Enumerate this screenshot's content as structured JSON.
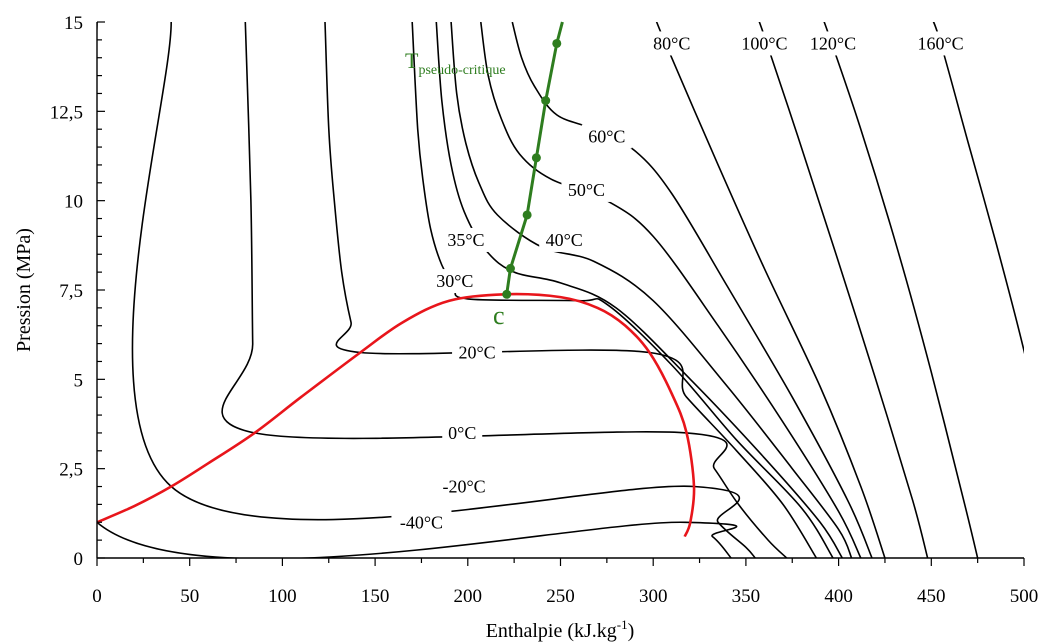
{
  "chart_data": {
    "type": "line",
    "xlabel": "Enthalpie (kJ.kg",
    "xlabel_sup": "-1",
    "xlabel_end": ")",
    "ylabel": "Pression (MPa)",
    "xlim": [
      0,
      500
    ],
    "ylim": [
      0,
      15
    ],
    "x_ticks": [
      "0",
      "50",
      "100",
      "150",
      "200",
      "250",
      "300",
      "350",
      "400",
      "450",
      "500"
    ],
    "y_ticks": [
      "0",
      "2,5",
      "5",
      "7,5",
      "10",
      "12,5",
      "15"
    ],
    "grid": false,
    "critical_point_label": "c",
    "pseudo_critical_label": {
      "main": "T",
      "sub": "pseudo-critique"
    },
    "colors": {
      "isotherm": "#000000",
      "saturation": "#e8151b",
      "pseudo_critical": "#2e7d1f"
    },
    "saturation_dome": [
      [
        0,
        1.0
      ],
      [
        20,
        1.45
      ],
      [
        40,
        2.0
      ],
      [
        60,
        2.65
      ],
      [
        85,
        3.5
      ],
      [
        110,
        4.5
      ],
      [
        142,
        5.75
      ],
      [
        165,
        6.6
      ],
      [
        190,
        7.2
      ],
      [
        220,
        7.38
      ],
      [
        250,
        7.3
      ],
      [
        270,
        7.0
      ],
      [
        285,
        6.5
      ],
      [
        298,
        5.75
      ],
      [
        310,
        4.6
      ],
      [
        318,
        3.5
      ],
      [
        322,
        2.0
      ],
      [
        320,
        1.0
      ],
      [
        317,
        0.6
      ]
    ],
    "pseudo_critical_points": [
      [
        221,
        7.38
      ],
      [
        223,
        8.1
      ],
      [
        232,
        9.6
      ],
      [
        237,
        11.2
      ],
      [
        242,
        12.8
      ],
      [
        248,
        14.4
      ]
    ],
    "pseudo_critical_line": [
      [
        221,
        7.38
      ],
      [
        223,
        8.1
      ],
      [
        232,
        9.6
      ],
      [
        237,
        11.2
      ],
      [
        242,
        12.8
      ],
      [
        248,
        14.4
      ],
      [
        251,
        15.0
      ]
    ],
    "series": [
      {
        "label": "-40°C",
        "label_at": [
          175,
          1.0
        ],
        "points": [
          [
            0,
            15
          ],
          [
            0,
            1.0
          ],
          [
            317,
            1.0
          ],
          [
            332,
            0.6
          ],
          [
            342,
            0
          ]
        ]
      },
      {
        "label": "-20°C",
        "label_at": [
          198,
          2.0
        ],
        "points": [
          [
            40,
            15
          ],
          [
            40,
            2.0
          ],
          [
            322,
            2.0
          ],
          [
            335,
            1.0
          ],
          [
            350,
            0.3
          ],
          [
            355,
            0
          ]
        ]
      },
      {
        "label": "0°C",
        "label_at": [
          197,
          3.5
        ],
        "points": [
          [
            80,
            15
          ],
          [
            83,
            10
          ],
          [
            84,
            6
          ],
          [
            85,
            3.5
          ],
          [
            318,
            3.5
          ],
          [
            333,
            2.5
          ],
          [
            346,
            1.5
          ],
          [
            362,
            0.5
          ],
          [
            372,
            0
          ]
        ]
      },
      {
        "label": "20°C",
        "label_at": [
          205,
          5.75
        ],
        "points": [
          [
            123,
            15
          ],
          [
            125,
            12
          ],
          [
            128,
            10
          ],
          [
            132,
            8
          ],
          [
            137,
            6.6
          ],
          [
            142,
            5.75
          ],
          [
            298,
            5.75
          ],
          [
            318,
            4.5
          ],
          [
            345,
            3.0
          ],
          [
            370,
            1.5
          ],
          [
            388,
            0
          ]
        ]
      },
      {
        "label": "30°C",
        "label_at": [
          193,
          7.75
        ],
        "points": [
          [
            170,
            15
          ],
          [
            173,
            12
          ],
          [
            176,
            10.5
          ],
          [
            180,
            9.2
          ],
          [
            186,
            8.2
          ],
          [
            193,
            7.6
          ],
          [
            200,
            7.25
          ],
          [
            260,
            7.2
          ],
          [
            275,
            7.1
          ],
          [
            310,
            5.4
          ],
          [
            345,
            3.3
          ],
          [
            380,
            1.4
          ],
          [
            397,
            0
          ]
        ]
      },
      {
        "label": "35°C",
        "label_at": [
          199,
          8.9
        ],
        "points": [
          [
            183,
            15
          ],
          [
            186,
            12.8
          ],
          [
            191,
            11
          ],
          [
            198,
            9.7
          ],
          [
            210,
            8.6
          ],
          [
            225,
            8.0
          ],
          [
            250,
            7.7
          ],
          [
            280,
            7.0
          ],
          [
            320,
            5.0
          ],
          [
            360,
            2.8
          ],
          [
            390,
            1.0
          ],
          [
            402,
            0
          ]
        ]
      },
      {
        "label": "40°C",
        "label_at": [
          252,
          8.9
        ],
        "points": [
          [
            191,
            15
          ],
          [
            194,
            13
          ],
          [
            199,
            11.6
          ],
          [
            206,
            10.5
          ],
          [
            216,
            9.6
          ],
          [
            240,
            8.7
          ],
          [
            268,
            8.3
          ],
          [
            300,
            7.2
          ],
          [
            340,
            4.8
          ],
          [
            375,
            2.5
          ],
          [
            400,
            0.8
          ],
          [
            407,
            0
          ]
        ]
      },
      {
        "label": "50°C",
        "label_at": [
          264,
          10.3
        ],
        "points": [
          [
            207,
            15
          ],
          [
            211,
            13.5
          ],
          [
            218,
            12.3
          ],
          [
            228,
            11.3
          ],
          [
            245,
            10.6
          ],
          [
            275,
            10.0
          ],
          [
            300,
            9.0
          ],
          [
            335,
            6.5
          ],
          [
            370,
            3.8
          ],
          [
            400,
            1.3
          ],
          [
            412,
            0
          ]
        ]
      },
      {
        "label": "60°C",
        "label_at": [
          275,
          11.8
        ],
        "points": [
          [
            224,
            15
          ],
          [
            229,
            14.0
          ],
          [
            236,
            13.2
          ],
          [
            248,
            12.4
          ],
          [
            268,
            12.0
          ],
          [
            290,
            11.4
          ],
          [
            310,
            10.2
          ],
          [
            340,
            7.6
          ],
          [
            375,
            4.5
          ],
          [
            405,
            1.6
          ],
          [
            418,
            0
          ]
        ]
      },
      {
        "label": "80°C",
        "label_at": [
          310,
          14.4
        ],
        "points": [
          [
            300,
            15.3
          ],
          [
            305,
            14.6
          ],
          [
            335,
            11.0
          ],
          [
            360,
            8.1
          ],
          [
            390,
            4.8
          ],
          [
            412,
            2.0
          ],
          [
            425,
            0
          ]
        ]
      },
      {
        "label": "100°C",
        "label_at": [
          360,
          14.4
        ],
        "points": [
          [
            355,
            15.3
          ],
          [
            360,
            14.6
          ],
          [
            378,
            11.8
          ],
          [
            398,
            8.6
          ],
          [
            420,
            5.0
          ],
          [
            440,
            1.6
          ],
          [
            448,
            0
          ]
        ]
      },
      {
        "label": "120°C",
        "label_at": [
          397,
          14.4
        ],
        "points": [
          [
            390,
            15.3
          ],
          [
            395,
            14.6
          ],
          [
            412,
            12.0
          ],
          [
            432,
            8.6
          ],
          [
            450,
            5.2
          ],
          [
            468,
            1.5
          ],
          [
            475,
            0
          ]
        ]
      },
      {
        "label": "160°C",
        "label_at": [
          455,
          14.4
        ],
        "points": [
          [
            448,
            15.3
          ],
          [
            454,
            14.6
          ],
          [
            470,
            11.6
          ],
          [
            485,
            8.8
          ],
          [
            500,
            5.8
          ],
          [
            510,
            3.4
          ]
        ]
      }
    ]
  }
}
